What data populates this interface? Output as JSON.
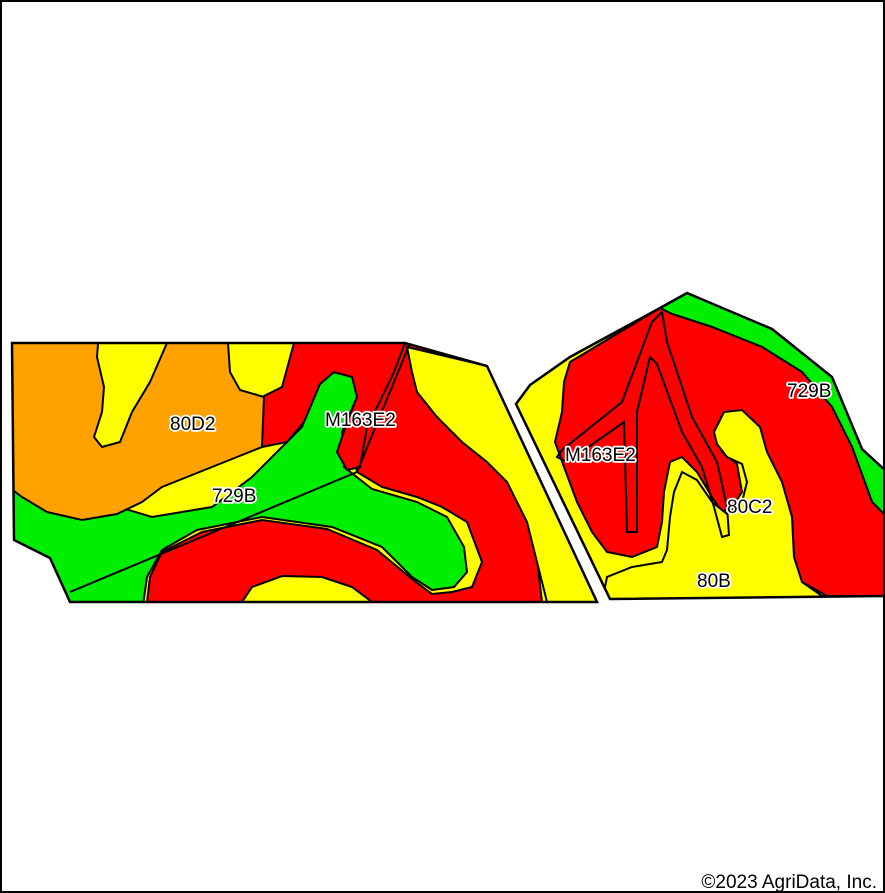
{
  "colors": {
    "orange": "#ffa200",
    "yellow": "#ffff00",
    "red": "#ff0000",
    "green": "#00ee00",
    "outline": "#000000"
  },
  "soil_labels": {
    "west_80D2": "80D2",
    "west_M163E2": "M163E2",
    "west_729B": "729B",
    "east_729B": "729B",
    "east_M163E2": "M163E2",
    "east_80C2": "80C2",
    "east_80B": "80B"
  },
  "copyright": "©2023 AgriData, Inc."
}
